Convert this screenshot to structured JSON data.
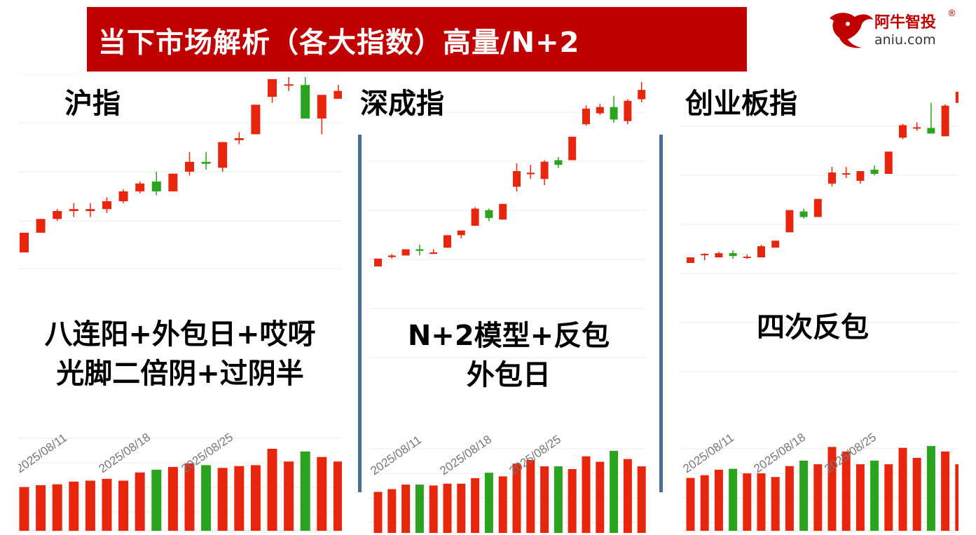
{
  "header": {
    "title": "当下市场解析（各大指数）高量/N+2"
  },
  "logo": {
    "name": "阿牛智投",
    "reg": "®",
    "url": "aniu.com",
    "icon": "bull-head-icon"
  },
  "colors": {
    "up": "#e8260e",
    "down": "#2aa31f",
    "banner": "#c00000",
    "divider": "#4a6d96",
    "grid": "#ebebeb"
  },
  "chart_data": [
    {
      "type": "candlestick",
      "name": "沪指",
      "note_lines": [
        "八连阳+外包日+哎呀",
        "光脚二倍阴+过阴半"
      ],
      "date_ticks": [
        {
          "i": 0,
          "label": "2025/08/11"
        },
        {
          "i": 5,
          "label": "2025/08/18"
        },
        {
          "i": 10,
          "label": "2025/08/25"
        }
      ],
      "price_range": [
        0,
        100
      ],
      "volume_range": [
        0,
        100
      ],
      "candles": [
        {
          "o": 18,
          "c": 28,
          "h": 28,
          "l": 18,
          "v": 48
        },
        {
          "o": 28,
          "c": 35,
          "h": 35,
          "l": 28,
          "v": 50
        },
        {
          "o": 35,
          "c": 39,
          "h": 40,
          "l": 34,
          "v": 51
        },
        {
          "o": 39,
          "c": 40,
          "h": 43,
          "l": 36,
          "v": 54
        },
        {
          "o": 39,
          "c": 40,
          "h": 43,
          "l": 36,
          "v": 55
        },
        {
          "o": 40,
          "c": 44,
          "h": 46,
          "l": 38,
          "v": 57
        },
        {
          "o": 44,
          "c": 49,
          "h": 50,
          "l": 43,
          "v": 55
        },
        {
          "o": 49,
          "c": 53,
          "h": 54,
          "l": 48,
          "v": 64
        },
        {
          "o": 54,
          "c": 49,
          "h": 59,
          "l": 47,
          "v": 67
        },
        {
          "o": 49,
          "c": 58,
          "h": 58,
          "l": 49,
          "v": 70
        },
        {
          "o": 59,
          "c": 64,
          "h": 69,
          "l": 57,
          "v": 74
        },
        {
          "o": 64,
          "c": 63,
          "h": 69,
          "l": 60,
          "v": 72
        },
        {
          "o": 61,
          "c": 74,
          "h": 74,
          "l": 59,
          "v": 69
        },
        {
          "o": 75,
          "c": 76,
          "h": 79,
          "l": 73,
          "v": 71
        },
        {
          "o": 78,
          "c": 93,
          "h": 93,
          "l": 78,
          "v": 72
        },
        {
          "o": 97,
          "c": 106,
          "h": 106,
          "l": 94,
          "v": 90
        },
        {
          "o": 103,
          "c": 103,
          "h": 107,
          "l": 100,
          "v": 76
        },
        {
          "o": 103,
          "c": 86,
          "h": 107,
          "l": 86,
          "v": 87
        },
        {
          "o": 86,
          "c": 98,
          "h": 98,
          "l": 78,
          "v": 81
        },
        {
          "o": 96,
          "c": 100,
          "h": 103,
          "l": 96,
          "v": 76
        }
      ]
    },
    {
      "type": "candlestick",
      "name": "深成指",
      "note_lines": [
        "N+2模型+反包",
        "外包日"
      ],
      "date_ticks": [
        {
          "i": 0,
          "label": "2025/08/11"
        },
        {
          "i": 5,
          "label": "2025/08/18"
        },
        {
          "i": 10,
          "label": "2025/08/25"
        }
      ],
      "price_range": [
        0,
        100
      ],
      "volume_range": [
        0,
        100
      ],
      "candles": [
        {
          "o": 8,
          "c": 13,
          "h": 13,
          "l": 8,
          "v": 45
        },
        {
          "o": 14,
          "c": 15,
          "h": 16,
          "l": 13,
          "v": 48
        },
        {
          "o": 15,
          "c": 19,
          "h": 19,
          "l": 15,
          "v": 53
        },
        {
          "o": 19,
          "c": 18,
          "h": 22,
          "l": 15,
          "v": 53
        },
        {
          "o": 16,
          "c": 17,
          "h": 19,
          "l": 16,
          "v": 52
        },
        {
          "o": 20,
          "c": 28,
          "h": 28,
          "l": 20,
          "v": 54
        },
        {
          "o": 28,
          "c": 31,
          "h": 31,
          "l": 26,
          "v": 54
        },
        {
          "o": 34,
          "c": 45,
          "h": 46,
          "l": 34,
          "v": 60
        },
        {
          "o": 44,
          "c": 39,
          "h": 45,
          "l": 37,
          "v": 66
        },
        {
          "o": 38,
          "c": 48,
          "h": 48,
          "l": 38,
          "v": 62
        },
        {
          "o": 59,
          "c": 69,
          "h": 74,
          "l": 56,
          "v": 76
        },
        {
          "o": 67,
          "c": 68,
          "h": 73,
          "l": 64,
          "v": 80
        },
        {
          "o": 64,
          "c": 75,
          "h": 76,
          "l": 60,
          "v": 73
        },
        {
          "o": 76,
          "c": 73,
          "h": 78,
          "l": 71,
          "v": 73
        },
        {
          "o": 76,
          "c": 91,
          "h": 91,
          "l": 76,
          "v": 70
        },
        {
          "o": 99,
          "c": 109,
          "h": 111,
          "l": 98,
          "v": 84
        },
        {
          "o": 106,
          "c": 110,
          "h": 112,
          "l": 105,
          "v": 78
        },
        {
          "o": 110,
          "c": 102,
          "h": 117,
          "l": 100,
          "v": 90
        },
        {
          "o": 101,
          "c": 114,
          "h": 115,
          "l": 99,
          "v": 81
        },
        {
          "o": 115,
          "c": 121,
          "h": 126,
          "l": 113,
          "v": 73
        }
      ]
    },
    {
      "type": "candlestick",
      "name": "创业板指",
      "note_lines": [
        "四次反包"
      ],
      "date_ticks": [
        {
          "i": 0,
          "label": "2025/08/11"
        },
        {
          "i": 5,
          "label": "2025/08/18"
        },
        {
          "i": 10,
          "label": "2025/08/25"
        }
      ],
      "price_range": [
        0,
        100
      ],
      "volume_range": [
        0,
        100
      ],
      "candles": [
        {
          "o": 7,
          "c": 11,
          "h": 11,
          "l": 7,
          "v": 58
        },
        {
          "o": 12,
          "c": 13,
          "h": 14,
          "l": 9,
          "v": 61
        },
        {
          "o": 11,
          "c": 14,
          "h": 15,
          "l": 11,
          "v": 67
        },
        {
          "o": 14,
          "c": 12,
          "h": 16,
          "l": 10,
          "v": 68
        },
        {
          "o": 11,
          "c": 11,
          "h": 13,
          "l": 10,
          "v": 63
        },
        {
          "o": 11,
          "c": 19,
          "h": 20,
          "l": 11,
          "v": 63
        },
        {
          "o": 18,
          "c": 23,
          "h": 23,
          "l": 18,
          "v": 59
        },
        {
          "o": 29,
          "c": 45,
          "h": 45,
          "l": 29,
          "v": 71
        },
        {
          "o": 44,
          "c": 40,
          "h": 46,
          "l": 39,
          "v": 77
        },
        {
          "o": 40,
          "c": 53,
          "h": 53,
          "l": 40,
          "v": 73
        },
        {
          "o": 64,
          "c": 72,
          "h": 76,
          "l": 62,
          "v": 92
        },
        {
          "o": 70,
          "c": 71,
          "h": 76,
          "l": 68,
          "v": 87
        },
        {
          "o": 66,
          "c": 73,
          "h": 73,
          "l": 64,
          "v": 73
        },
        {
          "o": 74,
          "c": 71,
          "h": 77,
          "l": 70,
          "v": 77
        },
        {
          "o": 71,
          "c": 87,
          "h": 87,
          "l": 71,
          "v": 73
        },
        {
          "o": 97,
          "c": 106,
          "h": 107,
          "l": 96,
          "v": 91
        },
        {
          "o": 104,
          "c": 104,
          "h": 108,
          "l": 102,
          "v": 80
        },
        {
          "o": 104,
          "c": 100,
          "h": 122,
          "l": 100,
          "v": 93
        },
        {
          "o": 98,
          "c": 120,
          "h": 121,
          "l": 98,
          "v": 87
        },
        {
          "o": 122,
          "c": 130,
          "h": 139,
          "l": 120,
          "v": 73
        }
      ]
    }
  ]
}
